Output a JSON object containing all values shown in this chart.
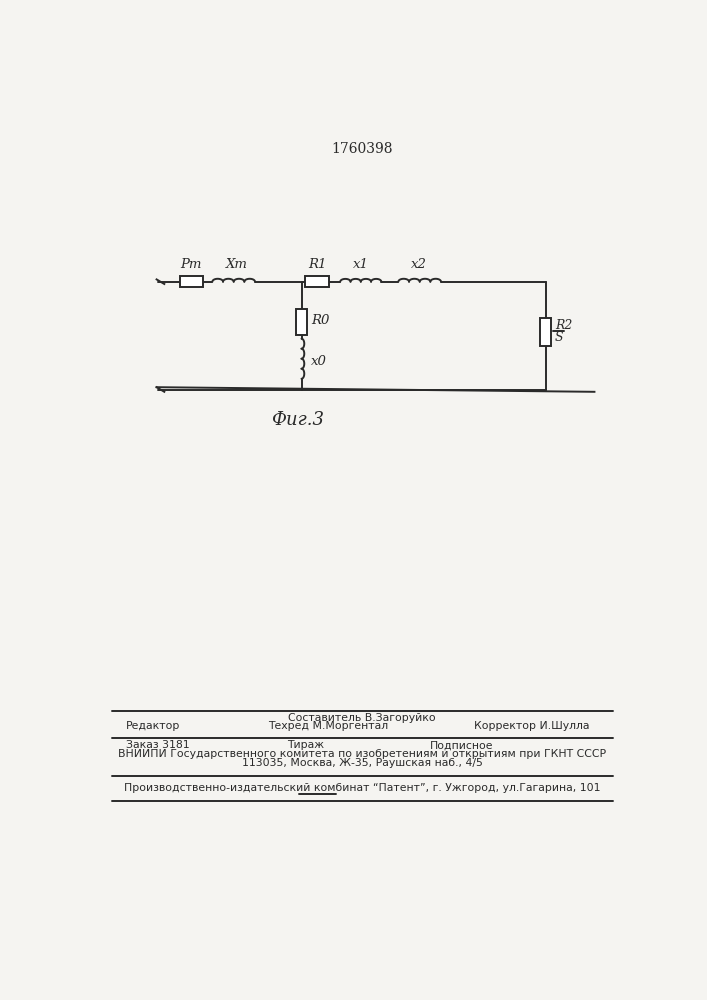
{
  "patent_number": "1760398",
  "fig_label": "Фиг.3",
  "background_color": "#f5f4f1",
  "line_color": "#2a2a2a",
  "component_labels": {
    "Rt": "Рт",
    "Xt": "Хт",
    "R1": "R1",
    "X1": "х1",
    "X2": "х2",
    "R0": "R0",
    "X0": "х0",
    "R2": "R2",
    "S": "S"
  },
  "footer_col1_row1": "Редактор",
  "footer_col2_row1a": "Составитель В.Загоруйко",
  "footer_col2_row1b": "Техред М.Моргентал",
  "footer_col3_row1": "Корректор И.Шулла",
  "footer_col1_row2": "Заказ 3181",
  "footer_col2_row2": "Тираж",
  "footer_col3_row2": "Подписное",
  "footer_row3": "ВНИИПИ Государственного комитета по изобретениям и открытиям при ГКНТ СССР",
  "footer_row4": "113035, Москва, Ж-35, Раушская наб., 4/5",
  "footer_row5": "Производственно-издательский комбинат “Патент”, г. Ужгород, ул.Гагарина, 101"
}
